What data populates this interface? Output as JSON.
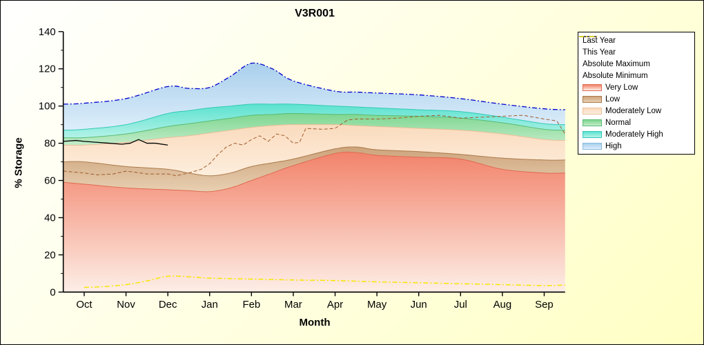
{
  "chart_data": {
    "type": "area",
    "title": "V3R001",
    "xlabel": "Month",
    "ylabel": "% Storage",
    "x_tick_labels": [
      "Oct",
      "Nov",
      "Dec",
      "Jan",
      "Feb",
      "Mar",
      "Apr",
      "May",
      "Jun",
      "Jul",
      "Aug",
      "Sep"
    ],
    "ylim": [
      0,
      140
    ],
    "y_major_step": 20,
    "y_minor_step": 10,
    "x_range": [
      -0.5,
      11.5
    ],
    "grid": "off",
    "layout": {
      "plot_left": 90,
      "plot_top": 45,
      "plot_right": 820,
      "plot_bottom": 424,
      "legend_position": "right"
    },
    "band_x": [
      -0.5,
      0,
      1,
      2,
      2.5,
      3,
      3.5,
      4,
      4.5,
      5,
      6,
      6.5,
      7,
      8,
      9,
      10,
      11,
      11.5
    ],
    "bands": [
      {
        "name": "Very Low",
        "upper": [
          59,
          58,
          56,
          55,
          54.5,
          54,
          56,
          60,
          64,
          68,
          74.5,
          75,
          73.5,
          72.5,
          71.5,
          66,
          64,
          64
        ],
        "color": "#f2836b",
        "color_light": "#fdeee6",
        "edge": "#df6950"
      },
      {
        "name": "Low",
        "upper": [
          70,
          70,
          67.5,
          66,
          64,
          62.5,
          64,
          67.5,
          69.5,
          71.5,
          77,
          78,
          76.5,
          75.5,
          74,
          72,
          71,
          71
        ],
        "color": "#cda37b",
        "color_light": "#e8d0b2",
        "edge": "#ab7a4b"
      },
      {
        "name": "Moderately Low",
        "upper": [
          79,
          79,
          80.5,
          83,
          84,
          85.5,
          87,
          88.5,
          89.5,
          90,
          90,
          89.5,
          89,
          88,
          87,
          85,
          82,
          81.5
        ],
        "color": "#fadbbe",
        "color_light": "#fdeedd",
        "edge": "#ecbf97"
      },
      {
        "name": "Normal",
        "upper": [
          83,
          83,
          85,
          89,
          90.5,
          92,
          93.5,
          95,
          95.5,
          96,
          95.5,
          95.5,
          95,
          94.5,
          93.5,
          91,
          87.5,
          87
        ],
        "color": "#7ed690",
        "color_light": "#c2ecca",
        "edge": "#58bb72"
      },
      {
        "name": "Moderately High",
        "upper": [
          87,
          87.5,
          90,
          96,
          97.5,
          99,
          100,
          101,
          101,
          101,
          100,
          99.5,
          99,
          98,
          97,
          94,
          90.5,
          90
        ],
        "color": "#5ce2cf",
        "color_light": "#b4f2e8",
        "edge": "#2fc9b6"
      },
      {
        "name": "High",
        "upper": [
          101,
          101.5,
          104,
          110.5,
          109.5,
          110,
          116,
          123,
          120,
          113.5,
          108,
          107.5,
          107,
          106,
          104,
          101,
          98.5,
          98
        ],
        "color": "#a9cfec",
        "color_light": "#ddeefa",
        "edge": "#88b8dd"
      }
    ],
    "lines": [
      {
        "name": "Last Year",
        "color": "#a05a2a",
        "dash": "5 3",
        "width": 1,
        "smooth": false,
        "x": [
          -0.5,
          0,
          0.3,
          0.7,
          1,
          1.2,
          1.5,
          2,
          2.2,
          2.5,
          2.8,
          3,
          3.2,
          3.4,
          3.6,
          3.8,
          4,
          4.2,
          4.4,
          4.6,
          4.8,
          5,
          5.15,
          5.3,
          5.7,
          6,
          6.3,
          6.5,
          7,
          7.5,
          8,
          8.5,
          9,
          9.5,
          10,
          10.5,
          11,
          11.3,
          11.5
        ],
        "y": [
          65,
          64,
          63,
          63.5,
          65,
          64.5,
          63.5,
          63.5,
          62.5,
          64,
          66,
          69,
          74,
          78,
          80,
          79,
          82,
          84,
          81,
          85,
          84,
          80,
          80.5,
          88,
          87.5,
          88,
          92.5,
          93,
          93,
          93.5,
          94.5,
          95,
          93.5,
          94,
          94.5,
          95,
          93,
          92,
          85
        ]
      },
      {
        "name": "This Year",
        "color": "#000000",
        "dash": "",
        "width": 1.3,
        "smooth": false,
        "x": [
          -0.5,
          -0.2,
          0,
          0.3,
          0.6,
          0.9,
          1.1,
          1.3,
          1.5,
          1.7,
          2
        ],
        "y": [
          81,
          81.5,
          81,
          80.5,
          80,
          79.5,
          80,
          82,
          80,
          80,
          79
        ]
      },
      {
        "name": "Absolute Maximum",
        "color": "#0000cd",
        "dash": "7 3 2 3",
        "width": 1.3,
        "smooth": true,
        "x": [
          -0.5,
          0,
          1,
          2,
          2.5,
          3,
          3.5,
          4,
          4.5,
          5,
          6,
          6.5,
          7,
          8,
          9,
          10,
          11,
          11.5
        ],
        "y": [
          101,
          101.5,
          104,
          110.5,
          109.5,
          110,
          116,
          123,
          120,
          113.5,
          108,
          107.5,
          107,
          106,
          104,
          101,
          98.5,
          98
        ]
      },
      {
        "name": "Absolute Minimum",
        "color": "#f7e600",
        "dash": "7 3 2 3",
        "width": 1.5,
        "smooth": true,
        "x": [
          0,
          0.5,
          1,
          1.5,
          2,
          2.5,
          3,
          4,
          5,
          6,
          7,
          8,
          9,
          10,
          11,
          11.5
        ],
        "y": [
          2.5,
          3,
          4,
          6,
          8.5,
          8.2,
          7.5,
          7,
          6.5,
          6.2,
          5.5,
          5,
          4.5,
          4,
          3.5,
          3.8
        ]
      }
    ],
    "legend": {
      "entries": [
        {
          "label": "Last Year",
          "swatch": "line",
          "ref": 0
        },
        {
          "label": "This Year",
          "swatch": "line",
          "ref": 1
        },
        {
          "label": "Absolute Maximum",
          "swatch": "line",
          "ref": 2
        },
        {
          "label": "Absolute Minimum",
          "swatch": "line",
          "ref": 3
        },
        {
          "label": "Very Low",
          "swatch": "band",
          "ref": 0
        },
        {
          "label": "Low",
          "swatch": "band",
          "ref": 1
        },
        {
          "label": "Moderately Low",
          "swatch": "band",
          "ref": 2
        },
        {
          "label": "Normal",
          "swatch": "band",
          "ref": 3
        },
        {
          "label": "Moderately High",
          "swatch": "band",
          "ref": 4
        },
        {
          "label": "High",
          "swatch": "band",
          "ref": 5
        }
      ]
    }
  }
}
